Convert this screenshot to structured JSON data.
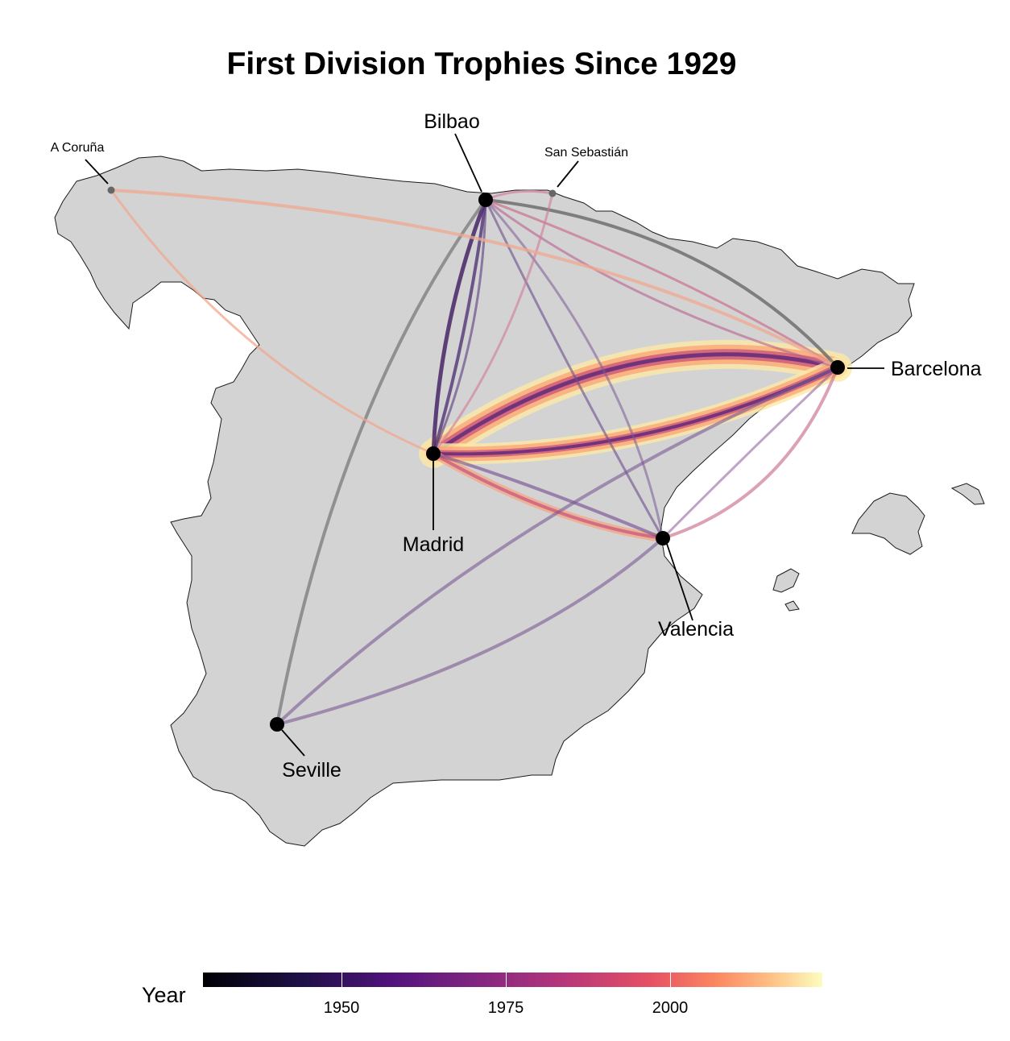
{
  "title": "First Division Trophies Since 1929",
  "cities": [
    {
      "id": "bilbao",
      "name": "Bilbao",
      "size": "big"
    },
    {
      "id": "coruna",
      "name": "A Coruña",
      "size": "small"
    },
    {
      "id": "sansebastian",
      "name": "San Sebastián",
      "size": "small"
    },
    {
      "id": "barcelona",
      "name": "Barcelona",
      "size": "big"
    },
    {
      "id": "madrid",
      "name": "Madrid",
      "size": "big"
    },
    {
      "id": "valencia",
      "name": "Valencia",
      "size": "big"
    },
    {
      "id": "seville",
      "name": "Seville",
      "size": "big"
    }
  ],
  "legend": {
    "title": "Year",
    "ticks": [
      "1950",
      "1975",
      "2000"
    ],
    "colormap": "magma",
    "colors": [
      "#000004",
      "#1c1044",
      "#4f127b",
      "#812581",
      "#b5367a",
      "#e55064",
      "#fb8861",
      "#fec287",
      "#fcfdbf"
    ]
  },
  "colors": {
    "land": "#d3d3d3",
    "land_border": "#1a1a1a",
    "major_city": "#000000",
    "minor_city": "#666666"
  }
}
